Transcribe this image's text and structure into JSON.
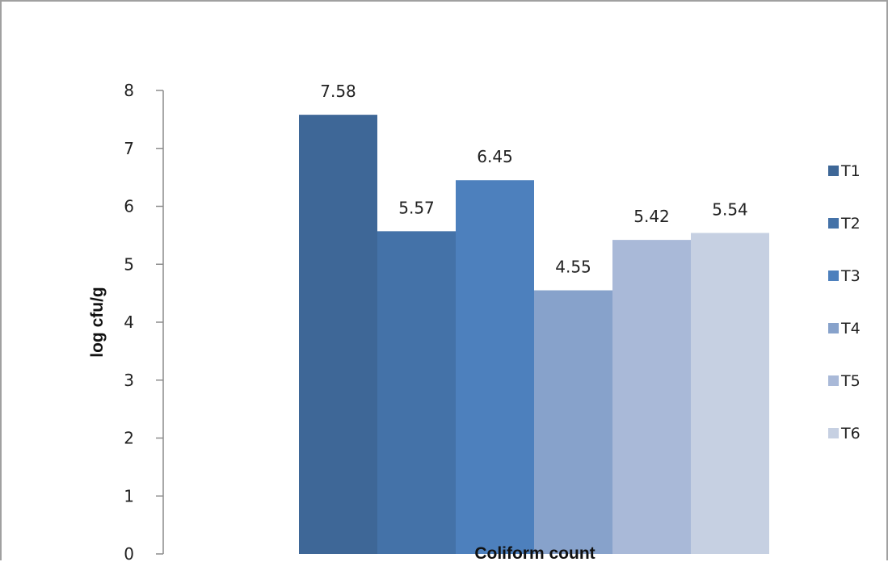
{
  "chart_data": {
    "type": "bar",
    "categories": [
      "Coliform count"
    ],
    "series": [
      {
        "name": "T1",
        "values": [
          7.58
        ],
        "color": "#3e6797"
      },
      {
        "name": "T2",
        "values": [
          5.57
        ],
        "color": "#4472a8"
      },
      {
        "name": "T3",
        "values": [
          6.45
        ],
        "color": "#4d80bd"
      },
      {
        "name": "T4",
        "values": [
          4.55
        ],
        "color": "#87a2cb"
      },
      {
        "name": "T5",
        "values": [
          5.42
        ],
        "color": "#a9b9d8"
      },
      {
        "name": "T6",
        "values": [
          5.54
        ],
        "color": "#c6d0e2"
      }
    ],
    "data_labels": [
      "7.58",
      "5.57",
      "6.45",
      "4.55",
      "5.42",
      "5.54"
    ],
    "title": "",
    "xlabel": "Coliform count",
    "ylabel": "log cfu/g",
    "ylim": [
      0,
      8
    ],
    "yticks": [
      "0",
      "1",
      "2",
      "3",
      "4",
      "5",
      "6",
      "7",
      "8"
    ],
    "grid": false,
    "legend_position": "right"
  }
}
